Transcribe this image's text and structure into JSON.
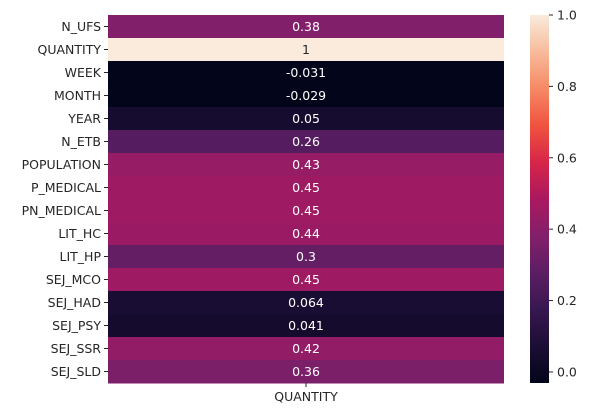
{
  "chart_data": {
    "type": "heatmap",
    "columns": [
      "QUANTITY"
    ],
    "rows": [
      "N_UFS",
      "QUANTITY",
      "WEEK",
      "MONTH",
      "YEAR",
      "N_ETB",
      "POPULATION",
      "P_MEDICAL",
      "PN_MEDICAL",
      "LIT_HC",
      "LIT_HP",
      "SEJ_MCO",
      "SEJ_HAD",
      "SEJ_PSY",
      "SEJ_SSR",
      "SEJ_SLD"
    ],
    "values": [
      0.38,
      1,
      -0.031,
      -0.029,
      0.05,
      0.26,
      0.43,
      0.45,
      0.45,
      0.44,
      0.3,
      0.45,
      0.064,
      0.041,
      0.42,
      0.36
    ],
    "value_labels": [
      "0.38",
      "1",
      "-0.031",
      "-0.029",
      "0.05",
      "0.26",
      "0.43",
      "0.45",
      "0.45",
      "0.44",
      "0.3",
      "0.45",
      "0.064",
      "0.041",
      "0.42",
      "0.36"
    ],
    "colorbar": {
      "range": [
        -0.031,
        1.0
      ],
      "ticks": [
        0.0,
        0.2,
        0.4,
        0.6,
        0.8,
        1.0
      ],
      "tick_labels": [
        "0.0",
        "0.2",
        "0.4",
        "0.6",
        "0.8",
        "1.0"
      ],
      "colormap": "rocket"
    },
    "xlabel": "",
    "ylabel": "",
    "title": ""
  }
}
